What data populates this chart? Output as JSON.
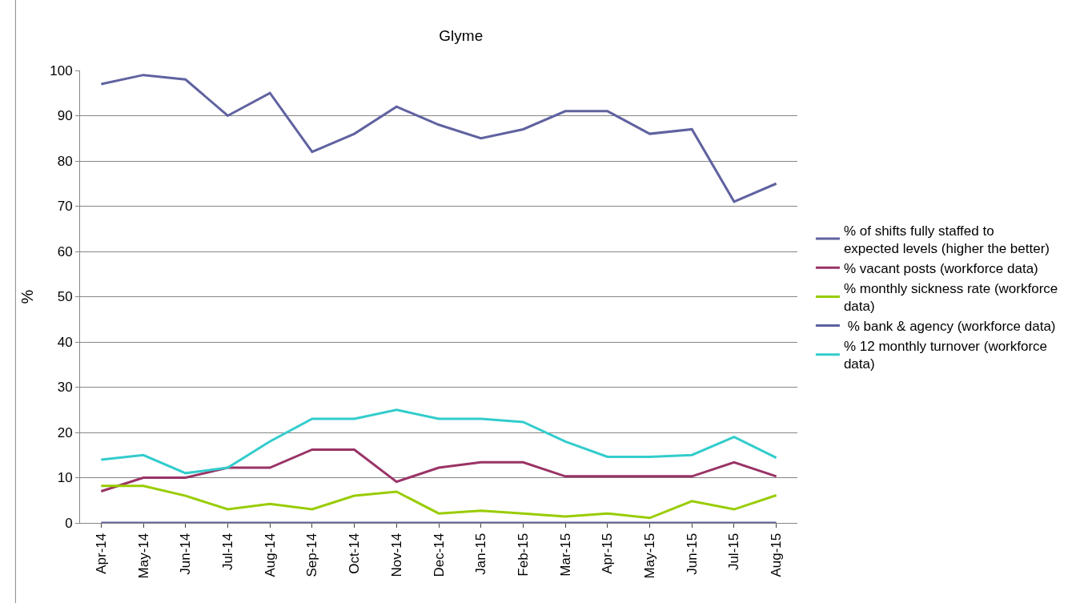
{
  "chart_data": {
    "type": "line",
    "title": "Glyme",
    "ylabel": "%",
    "categories": [
      "Apr-14",
      "May-14",
      "Jun-14",
      "Jul-14",
      "Aug-14",
      "Sep-14",
      "Oct-14",
      "Nov-14",
      "Dec-14",
      "Jan-15",
      "Feb-15",
      "Mar-15",
      "Apr-15",
      "May-15",
      "Jun-15",
      "Jul-15",
      "Aug-15"
    ],
    "series": [
      {
        "name": "% of shifts fully staffed to expected levels (higher the better)",
        "color": "#6062a0",
        "values": [
          97,
          99,
          98,
          90,
          95,
          82,
          86,
          92,
          88,
          85,
          87,
          91,
          91,
          86,
          87,
          71,
          75
        ]
      },
      {
        "name": "% vacant posts (workforce data)",
        "color": "#993366",
        "values": [
          7,
          10,
          10,
          12.2,
          12.2,
          16.2,
          16.2,
          9.1,
          12.2,
          13.4,
          13.4,
          10.3,
          10.3,
          10.3,
          10.3,
          13.4,
          10.3
        ]
      },
      {
        "name": "% monthly sickness rate (workforce data)",
        "color": "#99cc00",
        "values": [
          8.2,
          8.2,
          6,
          3,
          4.2,
          3,
          6,
          6.9,
          2.1,
          2.7,
          2.1,
          1.4,
          2.1,
          1.1,
          4.8,
          3,
          6.1
        ]
      },
      {
        "name": " % bank & agency (workforce data)",
        "color": "#5f5f9e",
        "values": [
          0,
          0,
          0,
          0,
          0,
          0,
          0,
          0,
          0,
          0,
          0,
          0,
          0,
          0,
          0,
          0,
          0
        ]
      },
      {
        "name": "% 12 monthly turnover (workforce data)",
        "color": "#33cccc",
        "values": [
          14,
          15,
          11,
          12.2,
          18,
          23,
          23,
          25,
          23,
          23,
          22.3,
          18,
          14.6,
          14.6,
          15,
          19,
          14.4
        ]
      }
    ],
    "ylim": [
      0,
      100
    ],
    "yticks": [
      0,
      10,
      20,
      30,
      40,
      50,
      60,
      70,
      80,
      90,
      100
    ],
    "grid": "y",
    "legend": "right",
    "marker": "none",
    "line_style": "solid"
  }
}
